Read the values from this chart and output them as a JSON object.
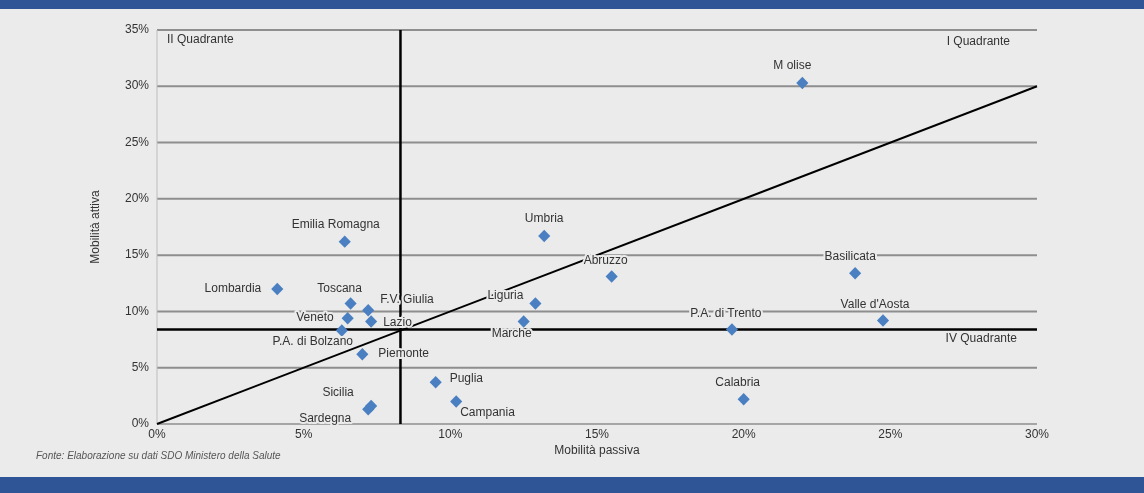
{
  "chart_data": {
    "type": "scatter",
    "xlabel": "Mobilità passiva",
    "ylabel": "Mobilità attiva",
    "xlim": [
      0,
      30
    ],
    "ylim": [
      0,
      35
    ],
    "xticks": [
      {
        "value": 0,
        "label": "0%"
      },
      {
        "value": 5,
        "label": "5%"
      },
      {
        "value": 10,
        "label": "10%"
      },
      {
        "value": 15,
        "label": "15%"
      },
      {
        "value": 20,
        "label": "20%"
      },
      {
        "value": 25,
        "label": "25%"
      },
      {
        "value": 30,
        "label": "30%"
      }
    ],
    "yticks": [
      {
        "value": 0,
        "label": "0%"
      },
      {
        "value": 5,
        "label": "5%"
      },
      {
        "value": 10,
        "label": "10%"
      },
      {
        "value": 15,
        "label": "15%"
      },
      {
        "value": 20,
        "label": "20%"
      },
      {
        "value": 25,
        "label": "25%"
      },
      {
        "value": 30,
        "label": "30%"
      },
      {
        "value": 35,
        "label": "35%"
      }
    ],
    "grid": "y",
    "marker": "diamond",
    "series": [
      {
        "color": "#4a7fc1",
        "x": [
          22.0,
          13.2,
          6.4,
          4.1,
          15.5,
          23.8,
          24.75,
          19.6,
          20.0,
          6.6,
          7.2,
          6.5,
          7.3,
          6.3,
          7.0,
          9.5,
          10.2,
          7.3,
          7.2,
          12.9,
          12.5
        ],
        "values": [
          30.3,
          16.7,
          16.2,
          12.0,
          13.1,
          13.4,
          9.2,
          8.4,
          2.2,
          10.7,
          10.1,
          9.4,
          9.1,
          8.3,
          6.2,
          3.7,
          2.0,
          1.6,
          1.3,
          10.7,
          9.1
        ]
      },
      {
        "type": "line",
        "color": "#000000",
        "x": [
          0,
          30
        ],
        "values": [
          0,
          30
        ],
        "marker": "none",
        "line_style": "solid"
      }
    ],
    "ref_lines": [
      {
        "axis": "x",
        "value": 8.3,
        "color": "#000000"
      },
      {
        "axis": "y",
        "value": 8.4,
        "color": "#000000"
      }
    ],
    "annotations": [
      {
        "text": "M olise",
        "x": 22.0,
        "y": 30.3
      },
      {
        "text": "Umbria",
        "x": 13.2,
        "y": 16.7
      },
      {
        "text": "Emilia Romagna",
        "x": 6.4,
        "y": 16.2
      },
      {
        "text": "Lombardia",
        "x": 4.1,
        "y": 12.0
      },
      {
        "text": "Abruzzo",
        "x": 15.5,
        "y": 13.1
      },
      {
        "text": "Basilicata",
        "x": 23.8,
        "y": 13.4
      },
      {
        "text": "Valle d'Aosta",
        "x": 24.75,
        "y": 9.2
      },
      {
        "text": "P.A. di Trento",
        "x": 19.6,
        "y": 8.4
      },
      {
        "text": "Calabria",
        "x": 20.0,
        "y": 2.2
      },
      {
        "text": "Toscana",
        "x": 6.6,
        "y": 10.7
      },
      {
        "text": "F.V. Giulia",
        "x": 7.2,
        "y": 10.1
      },
      {
        "text": "Veneto",
        "x": 6.5,
        "y": 9.4
      },
      {
        "text": "Lazio",
        "x": 7.3,
        "y": 9.1
      },
      {
        "text": "P.A. di Bolzano",
        "x": 6.3,
        "y": 8.3
      },
      {
        "text": "Piemonte",
        "x": 7.0,
        "y": 6.2
      },
      {
        "text": "Puglia",
        "x": 9.5,
        "y": 3.7
      },
      {
        "text": "Campania",
        "x": 10.2,
        "y": 2.0
      },
      {
        "text": "Sicilia",
        "x": 7.3,
        "y": 1.6
      },
      {
        "text": "Sardegna",
        "x": 7.2,
        "y": 1.3
      },
      {
        "text": "Liguria",
        "x": 12.9,
        "y": 10.7
      },
      {
        "text": "Marche",
        "x": 12.5,
        "y": 9.1
      },
      "II Quadrante",
      "I Quadrante",
      "IV Quadrante",
      "Fonte: Elaborazione su dati SDO Ministero della Salute"
    ]
  }
}
